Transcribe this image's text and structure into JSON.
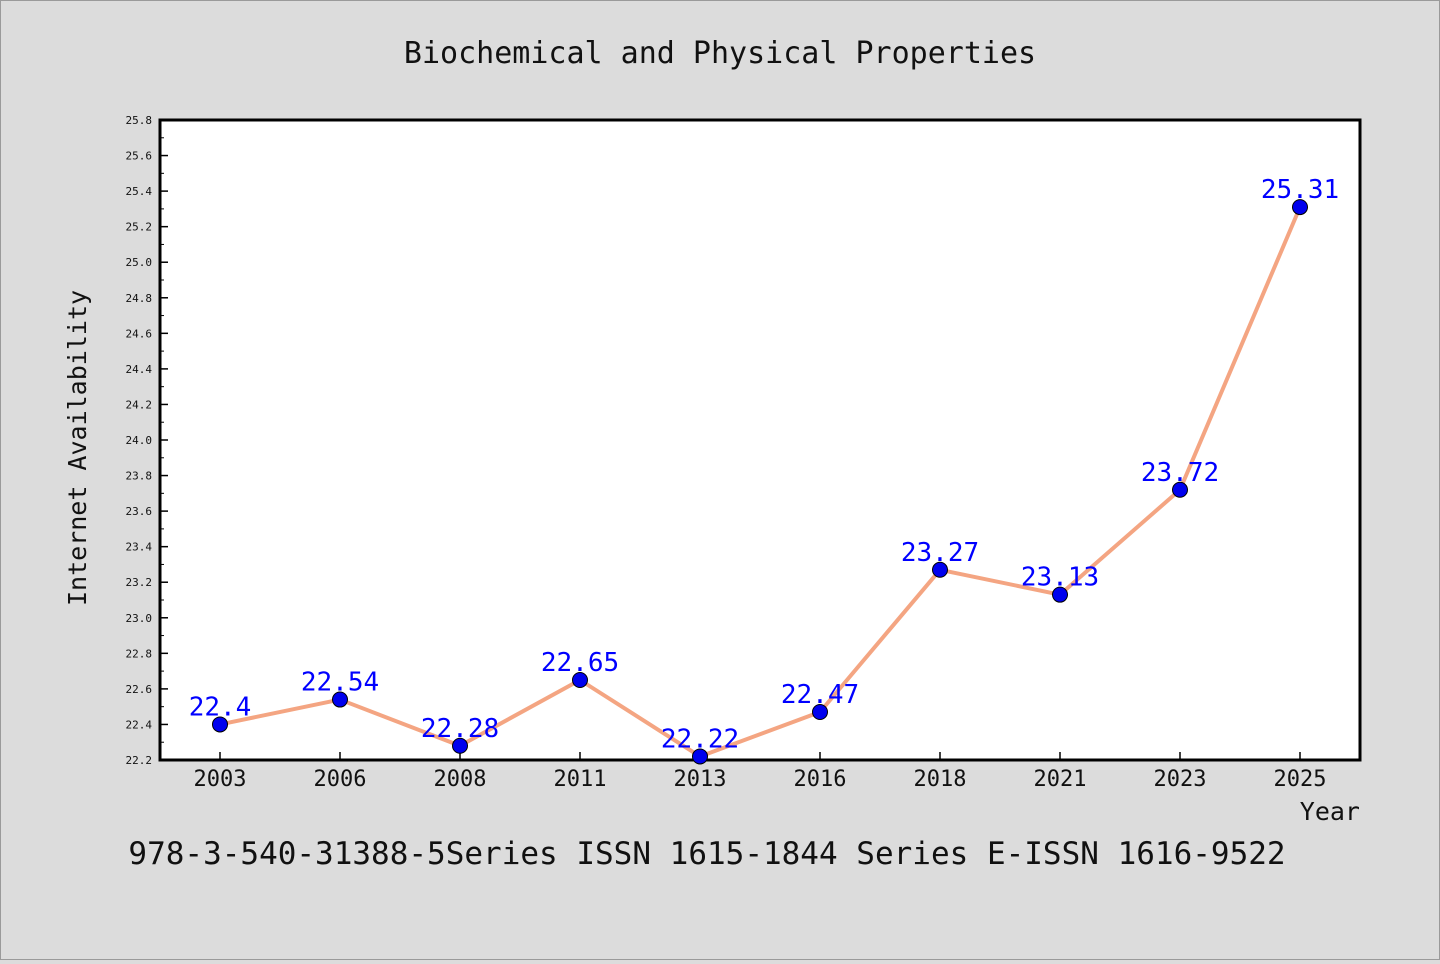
{
  "chart_data": {
    "type": "line",
    "title": "Biochemical and Physical Properties",
    "xlabel": "Year",
    "ylabel": "Internet Availability",
    "footer": "978-3-540-31388-5Series ISSN 1615-1844 Series E-ISSN 1616-9522",
    "categories": [
      "2003",
      "2006",
      "2008",
      "2011",
      "2013",
      "2016",
      "2018",
      "2021",
      "2023",
      "2025"
    ],
    "series": [
      {
        "values": [
          22.4,
          22.54,
          22.28,
          22.65,
          22.22,
          22.47,
          23.27,
          23.13,
          23.72,
          25.31
        ]
      }
    ],
    "data_labels": [
      "22.4",
      "22.54",
      "22.28",
      "22.65",
      "22.22",
      "22.47",
      "23.27",
      "23.13",
      "23.72",
      "25.31"
    ],
    "ylim": [
      22.2,
      25.8
    ],
    "yticks": [
      "22.2",
      "22.4",
      "22.6",
      "22.8",
      "23.0",
      "23.2",
      "23.4",
      "23.6",
      "23.8",
      "24.0",
      "24.2",
      "24.4",
      "24.6",
      "24.8",
      "25.0",
      "25.2",
      "25.4",
      "25.6",
      "25.8"
    ],
    "grid": false,
    "colors": {
      "background": "#dcdcdc",
      "plot_background": "#ffffff",
      "line": "#f4a582",
      "marker": "#0000ee",
      "data_label": "#0000ff",
      "text": "#111111"
    }
  }
}
